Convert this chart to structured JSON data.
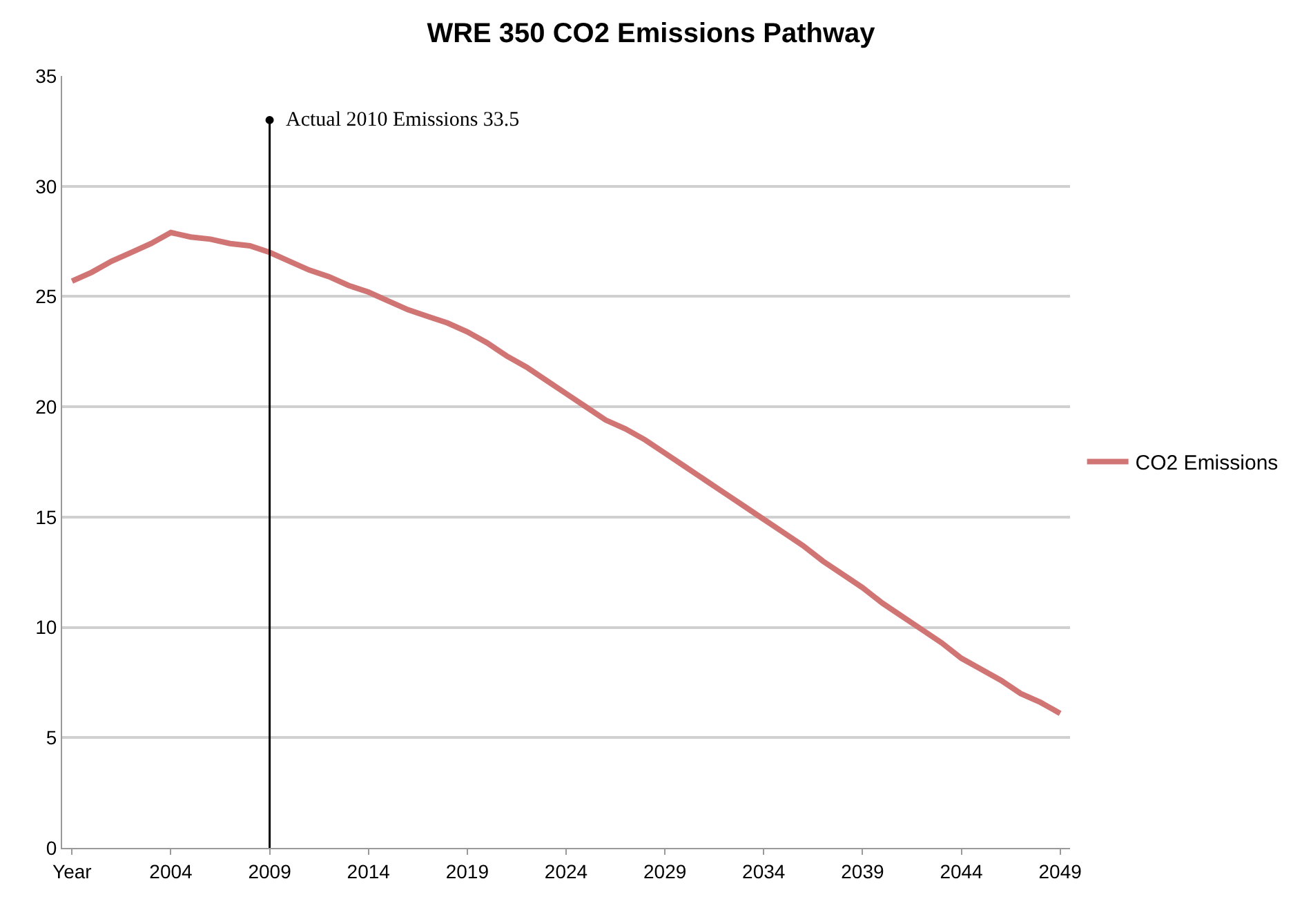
{
  "chart_data": {
    "type": "line",
    "title": "WRE 350 CO2 Emissions Pathway",
    "categories": [
      "Year",
      null,
      null,
      null,
      null,
      "2004",
      null,
      null,
      null,
      null,
      "2009",
      null,
      null,
      null,
      null,
      "2014",
      null,
      null,
      null,
      null,
      "2019",
      null,
      null,
      null,
      null,
      "2024",
      null,
      null,
      null,
      null,
      "2029",
      null,
      null,
      null,
      null,
      "2034",
      null,
      null,
      null,
      null,
      "2039",
      null,
      null,
      null,
      null,
      "2044",
      null,
      null,
      null,
      null,
      "2049"
    ],
    "series": [
      {
        "name": "CO2 Emissions",
        "color": "#d07474",
        "values": [
          25.7,
          26.1,
          26.6,
          27.0,
          27.4,
          27.9,
          27.7,
          27.6,
          27.4,
          27.3,
          27.0,
          26.6,
          26.2,
          25.9,
          25.5,
          25.2,
          24.8,
          24.4,
          24.1,
          23.8,
          23.4,
          22.9,
          22.3,
          21.8,
          21.2,
          20.6,
          20.0,
          19.4,
          19.0,
          18.5,
          17.9,
          17.3,
          16.7,
          16.1,
          15.5,
          14.9,
          14.3,
          13.7,
          13.0,
          12.4,
          11.8,
          11.1,
          10.5,
          9.9,
          9.3,
          8.6,
          8.1,
          7.6,
          7.0,
          6.6,
          6.1
        ]
      }
    ],
    "annotations": [
      {
        "text": "Actual 2010 Emissions 33.5",
        "x": "2009",
        "y": 33
      }
    ],
    "ylim": [
      0,
      35
    ],
    "yticks": [
      0,
      5,
      10,
      15,
      20,
      25,
      30,
      35
    ],
    "grid": "y",
    "legend": "right",
    "marker": "none",
    "line_style": "solid"
  }
}
